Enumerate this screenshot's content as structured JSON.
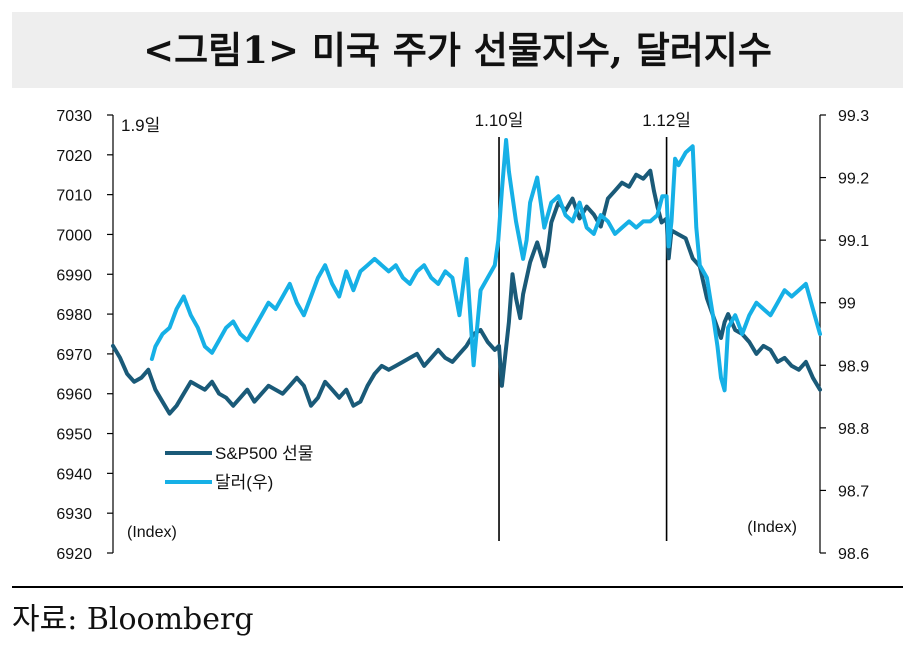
{
  "title": "<그림1> 미국 주가 선물지수, 달러지수",
  "source": "자료: Bloomberg",
  "chart_data": {
    "type": "line",
    "left_axis": {
      "unit_label": "(Index)",
      "ylim": [
        6920,
        7030
      ],
      "ticks": [
        "7030",
        "7020",
        "7010",
        "7000",
        "6990",
        "6980",
        "6970",
        "6960",
        "6950",
        "6940",
        "6930",
        "6920"
      ]
    },
    "right_axis": {
      "unit_label": "(Index)",
      "ylim": [
        98.6,
        99.3
      ],
      "ticks": [
        "99.3",
        "99.2",
        "99.1",
        "99",
        "98.9",
        "98.8",
        "98.7",
        "98.6"
      ]
    },
    "x_range": [
      0,
      100
    ],
    "day_markers": [
      {
        "label": "1.9일",
        "x": 0,
        "line": false
      },
      {
        "label": "1.10일",
        "x": 54.6,
        "line": true
      },
      {
        "label": "1.12일",
        "x": 78.3,
        "line": true
      }
    ],
    "legend_position": "bottom-left",
    "series": [
      {
        "name": "S&P500 선물",
        "axis": "left",
        "color": "#1a5a78",
        "points": [
          [
            0,
            6972
          ],
          [
            1,
            6969
          ],
          [
            2,
            6965
          ],
          [
            3,
            6963
          ],
          [
            4,
            6964
          ],
          [
            5,
            6966
          ],
          [
            6,
            6961
          ],
          [
            7,
            6958
          ],
          [
            8,
            6955
          ],
          [
            9,
            6957
          ],
          [
            10,
            6960
          ],
          [
            11,
            6963
          ],
          [
            12,
            6962
          ],
          [
            13,
            6961
          ],
          [
            14,
            6963
          ],
          [
            15,
            6960
          ],
          [
            16,
            6959
          ],
          [
            17,
            6957
          ],
          [
            18,
            6959
          ],
          [
            19,
            6961
          ],
          [
            20,
            6958
          ],
          [
            21,
            6960
          ],
          [
            22,
            6962
          ],
          [
            23,
            6961
          ],
          [
            24,
            6960
          ],
          [
            25,
            6962
          ],
          [
            26,
            6964
          ],
          [
            27,
            6962
          ],
          [
            28,
            6957
          ],
          [
            29,
            6959
          ],
          [
            30,
            6963
          ],
          [
            31,
            6961
          ],
          [
            32,
            6959
          ],
          [
            33,
            6961
          ],
          [
            34,
            6957
          ],
          [
            35,
            6958
          ],
          [
            36,
            6962
          ],
          [
            37,
            6965
          ],
          [
            38,
            6967
          ],
          [
            39,
            6966
          ],
          [
            40,
            6967
          ],
          [
            41,
            6968
          ],
          [
            42,
            6969
          ],
          [
            43,
            6970
          ],
          [
            44,
            6967
          ],
          [
            45,
            6969
          ],
          [
            46,
            6971
          ],
          [
            47,
            6969
          ],
          [
            48,
            6968
          ],
          [
            49,
            6970
          ],
          [
            50,
            6972
          ],
          [
            51,
            6975
          ],
          [
            52,
            6976
          ],
          [
            53,
            6973
          ],
          [
            54,
            6971
          ],
          [
            54.6,
            6972
          ],
          [
            55,
            6962
          ],
          [
            56,
            6978
          ],
          [
            56.5,
            6990
          ],
          [
            57,
            6984
          ],
          [
            57.6,
            6979
          ],
          [
            58,
            6985
          ],
          [
            59,
            6993
          ],
          [
            60,
            6998
          ],
          [
            61,
            6992
          ],
          [
            61.5,
            6996
          ],
          [
            62,
            7003
          ],
          [
            63,
            7008
          ],
          [
            64,
            7006
          ],
          [
            65,
            7009
          ],
          [
            66,
            7004
          ],
          [
            67,
            7007
          ],
          [
            68,
            7005
          ],
          [
            69,
            7002
          ],
          [
            70,
            7009
          ],
          [
            71,
            7011
          ],
          [
            72,
            7013
          ],
          [
            73,
            7012
          ],
          [
            74,
            7015
          ],
          [
            75,
            7014
          ],
          [
            76,
            7016
          ],
          [
            76.5,
            7011
          ],
          [
            77,
            7007
          ],
          [
            77.6,
            7003
          ],
          [
            78.3,
            7004
          ],
          [
            78.6,
            6994
          ],
          [
            79,
            7001
          ],
          [
            80,
            7000
          ],
          [
            81,
            6999
          ],
          [
            82,
            6994
          ],
          [
            83,
            6992
          ],
          [
            84,
            6984
          ],
          [
            85,
            6979
          ],
          [
            86,
            6974
          ],
          [
            86.5,
            6978
          ],
          [
            87,
            6980
          ],
          [
            88,
            6976
          ],
          [
            89,
            6975
          ],
          [
            90,
            6973
          ],
          [
            91,
            6970
          ],
          [
            92,
            6972
          ],
          [
            93,
            6971
          ],
          [
            94,
            6968
          ],
          [
            95,
            6969
          ],
          [
            96,
            6967
          ],
          [
            97,
            6966
          ],
          [
            98,
            6968
          ],
          [
            99,
            6964
          ],
          [
            100,
            6961
          ]
        ]
      },
      {
        "name": "달러(우)",
        "axis": "right",
        "color": "#16b0e6",
        "points": [
          [
            5.5,
            98.91
          ],
          [
            6,
            98.93
          ],
          [
            7,
            98.95
          ],
          [
            8,
            98.96
          ],
          [
            9,
            98.99
          ],
          [
            10,
            99.01
          ],
          [
            11,
            98.98
          ],
          [
            12,
            98.96
          ],
          [
            13,
            98.93
          ],
          [
            14,
            98.92
          ],
          [
            15,
            98.94
          ],
          [
            16,
            98.96
          ],
          [
            17,
            98.97
          ],
          [
            18,
            98.95
          ],
          [
            19,
            98.94
          ],
          [
            20,
            98.96
          ],
          [
            21,
            98.98
          ],
          [
            22,
            99.0
          ],
          [
            23,
            98.99
          ],
          [
            24,
            99.01
          ],
          [
            25,
            99.03
          ],
          [
            26,
            99.0
          ],
          [
            27,
            98.98
          ],
          [
            28,
            99.01
          ],
          [
            29,
            99.04
          ],
          [
            30,
            99.06
          ],
          [
            31,
            99.03
          ],
          [
            32,
            99.01
          ],
          [
            33,
            99.05
          ],
          [
            34,
            99.02
          ],
          [
            35,
            99.05
          ],
          [
            36,
            99.06
          ],
          [
            37,
            99.07
          ],
          [
            38,
            99.06
          ],
          [
            39,
            99.05
          ],
          [
            40,
            99.06
          ],
          [
            41,
            99.04
          ],
          [
            42,
            99.03
          ],
          [
            43,
            99.05
          ],
          [
            44,
            99.06
          ],
          [
            45,
            99.04
          ],
          [
            46,
            99.03
          ],
          [
            47,
            99.05
          ],
          [
            48,
            99.04
          ],
          [
            49,
            98.98
          ],
          [
            50,
            99.07
          ],
          [
            51,
            98.9
          ],
          [
            52,
            99.02
          ],
          [
            53,
            99.04
          ],
          [
            54,
            99.06
          ],
          [
            54.5,
            99.1
          ],
          [
            55,
            99.18
          ],
          [
            55.6,
            99.26
          ],
          [
            56,
            99.21
          ],
          [
            57,
            99.13
          ],
          [
            58,
            99.07
          ],
          [
            58.5,
            99.1
          ],
          [
            59,
            99.16
          ],
          [
            60,
            99.2
          ],
          [
            61,
            99.12
          ],
          [
            62,
            99.16
          ],
          [
            63,
            99.17
          ],
          [
            64,
            99.14
          ],
          [
            65,
            99.13
          ],
          [
            66,
            99.16
          ],
          [
            67,
            99.12
          ],
          [
            68,
            99.11
          ],
          [
            69,
            99.14
          ],
          [
            70,
            99.13
          ],
          [
            71,
            99.11
          ],
          [
            72,
            99.12
          ],
          [
            73,
            99.13
          ],
          [
            74,
            99.12
          ],
          [
            75,
            99.13
          ],
          [
            76,
            99.13
          ],
          [
            77,
            99.14
          ],
          [
            77.7,
            99.17
          ],
          [
            78.3,
            99.17
          ],
          [
            78.6,
            99.09
          ],
          [
            79,
            99.13
          ],
          [
            79.5,
            99.23
          ],
          [
            80,
            99.22
          ],
          [
            81,
            99.24
          ],
          [
            82,
            99.25
          ],
          [
            82.5,
            99.12
          ],
          [
            83,
            99.06
          ],
          [
            84,
            99.04
          ],
          [
            85,
            98.97
          ],
          [
            85.5,
            98.93
          ],
          [
            86,
            98.88
          ],
          [
            86.5,
            98.86
          ],
          [
            87,
            98.96
          ],
          [
            88,
            98.98
          ],
          [
            89,
            98.95
          ],
          [
            90,
            98.98
          ],
          [
            91,
            99.0
          ],
          [
            92,
            98.99
          ],
          [
            93,
            98.98
          ],
          [
            94,
            99.0
          ],
          [
            95,
            99.02
          ],
          [
            96,
            99.01
          ],
          [
            97,
            99.02
          ],
          [
            98,
            99.03
          ],
          [
            99,
            98.99
          ],
          [
            100,
            98.95
          ]
        ]
      }
    ]
  }
}
